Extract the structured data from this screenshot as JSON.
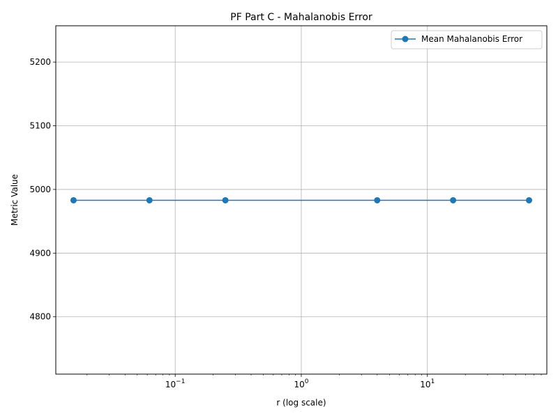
{
  "chart_data": {
    "type": "line",
    "title": "PF Part C - Mahalanobis Error",
    "xlabel": "r (log scale)",
    "ylabel": "Metric Value",
    "xscale": "log",
    "xlim": [
      0.0113,
      88.6
    ],
    "ylim": [
      4710,
      5257
    ],
    "grid": true,
    "legend_placement": "top-right",
    "x_ticks": [
      {
        "value": 0.1,
        "base": "10",
        "exp": "−1"
      },
      {
        "value": 1,
        "base": "10",
        "exp": "0"
      },
      {
        "value": 10,
        "base": "10",
        "exp": "1"
      }
    ],
    "y_ticks": [
      4800,
      4900,
      5000,
      5100,
      5200
    ],
    "series": [
      {
        "name": "Mean Mahalanobis Error",
        "color": "#1f77b4",
        "marker": "circle",
        "x": [
          0.015625,
          0.0625,
          0.25,
          4,
          16,
          64
        ],
        "y": [
          4983,
          4983,
          4983,
          4983,
          4983,
          4983
        ]
      }
    ]
  }
}
